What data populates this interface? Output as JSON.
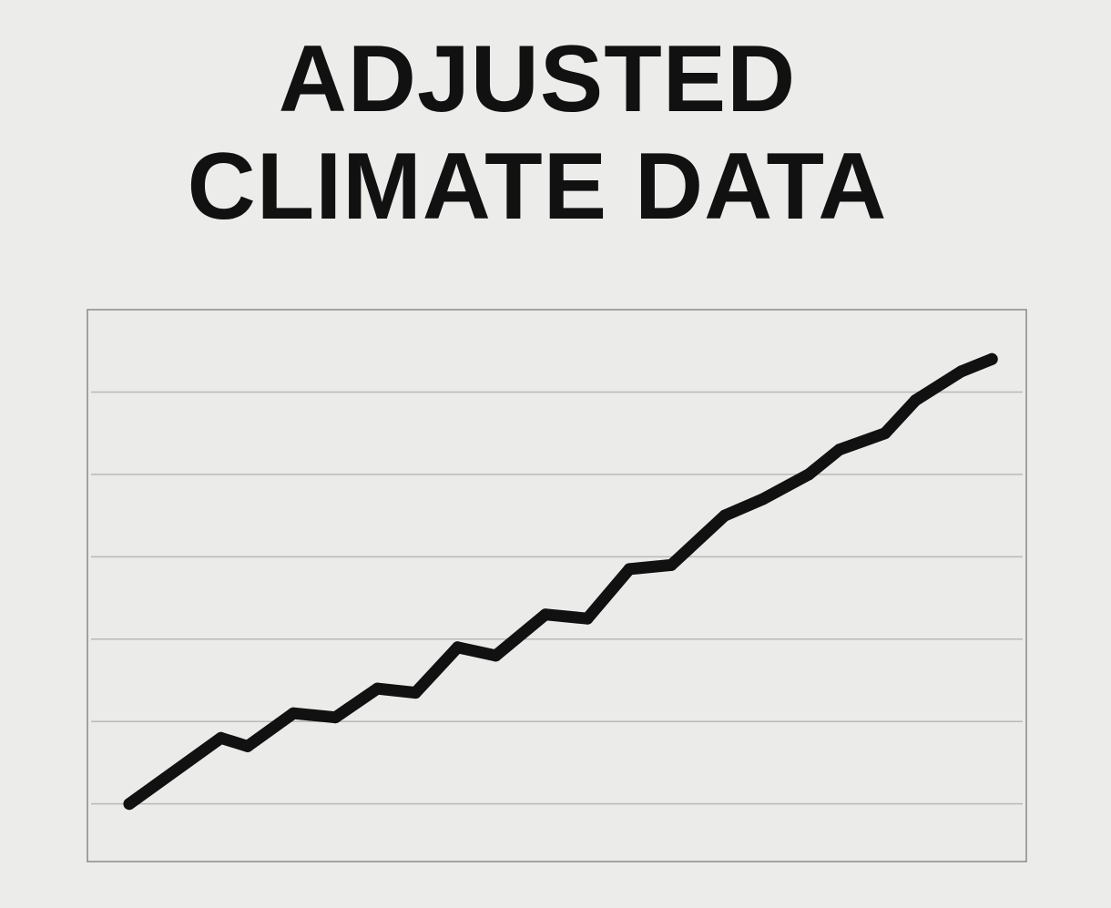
{
  "chart_data": {
    "type": "line",
    "title_lines": [
      "ADJUSTED",
      "CLIMATE DATA"
    ],
    "xlabel": "",
    "ylabel": "",
    "grid": true,
    "legend": "none",
    "ylim": [
      0,
      6.7
    ],
    "y_gridlines": [
      0.7,
      1.7,
      2.7,
      3.7,
      4.7,
      5.7
    ],
    "xlim": [
      0,
      23
    ],
    "series": [
      {
        "color": "#111111",
        "x": [
          0,
          2.4,
          3.1,
          4.3,
          5.4,
          6.5,
          7.5,
          8.6,
          9.6,
          10.9,
          12.0,
          13.1,
          14.2,
          15.6,
          16.6,
          17.8,
          18.6,
          19.8,
          20.6,
          21.8,
          22.6
        ],
        "y": [
          0.7,
          1.5,
          1.4,
          1.8,
          1.75,
          2.1,
          2.05,
          2.6,
          2.5,
          3.0,
          2.95,
          3.55,
          3.6,
          4.2,
          4.4,
          4.7,
          5.0,
          5.2,
          5.6,
          5.95,
          6.1
        ]
      }
    ]
  }
}
